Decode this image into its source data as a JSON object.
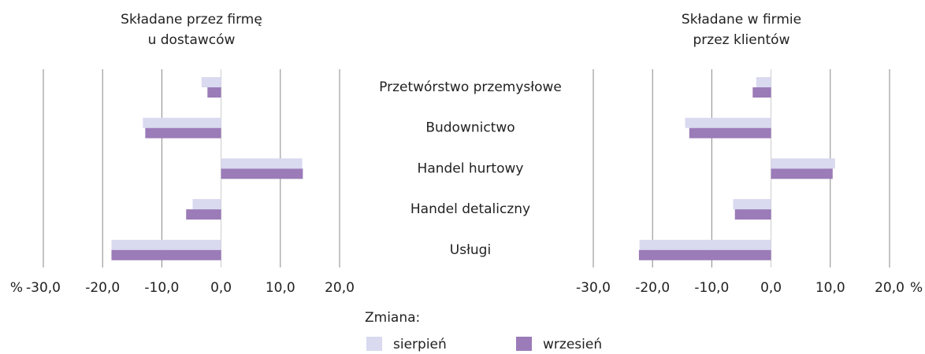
{
  "categories": [
    "Przetwórstwo przemysłowe",
    "Budownictwo",
    "Handel hurtowy",
    "Handel detaliczny",
    "Usługi"
  ],
  "legend": {
    "title": "Zmiana:",
    "items": [
      {
        "name": "sierpień",
        "color": "#d9d9f0"
      },
      {
        "name": "wrzesień",
        "color": "#9b7bb8"
      }
    ]
  },
  "chart_data": [
    {
      "type": "bar",
      "orientation": "horizontal",
      "title": [
        "Składane przez firmę",
        "u dostawców"
      ],
      "unit": "%",
      "unit_side": "left",
      "xlim": [
        -30,
        20
      ],
      "xticks": [
        {
          "value": -30,
          "label": "-30,0"
        },
        {
          "value": -20,
          "label": "-20,0"
        },
        {
          "value": -10,
          "label": "-10,0"
        },
        {
          "value": 0,
          "label": "0,0"
        },
        {
          "value": 10,
          "label": "10,0"
        },
        {
          "value": 20,
          "label": "20,0"
        }
      ],
      "grid": true,
      "series": [
        {
          "values": [
            -3.3,
            -13.2,
            13.7,
            -4.8,
            -18.5
          ]
        },
        {
          "values": [
            -2.3,
            -12.8,
            13.8,
            -5.9,
            -18.5
          ]
        }
      ]
    },
    {
      "type": "bar",
      "orientation": "horizontal",
      "title": [
        "Składane w firmie",
        "przez klientów"
      ],
      "unit": "%",
      "unit_side": "right",
      "xlim": [
        -30,
        20
      ],
      "xticks": [
        {
          "value": -30,
          "label": "-30,0"
        },
        {
          "value": -20,
          "label": "-20,0"
        },
        {
          "value": -10,
          "label": "-10,0"
        },
        {
          "value": 0,
          "label": "0,0"
        },
        {
          "value": 10,
          "label": "10,0"
        },
        {
          "value": 20,
          "label": "20,0"
        }
      ],
      "grid": true,
      "series": [
        {
          "values": [
            -2.5,
            -14.5,
            10.8,
            -6.4,
            -22.2
          ]
        },
        {
          "values": [
            -3.1,
            -13.8,
            10.4,
            -6.1,
            -22.3
          ]
        }
      ]
    }
  ]
}
